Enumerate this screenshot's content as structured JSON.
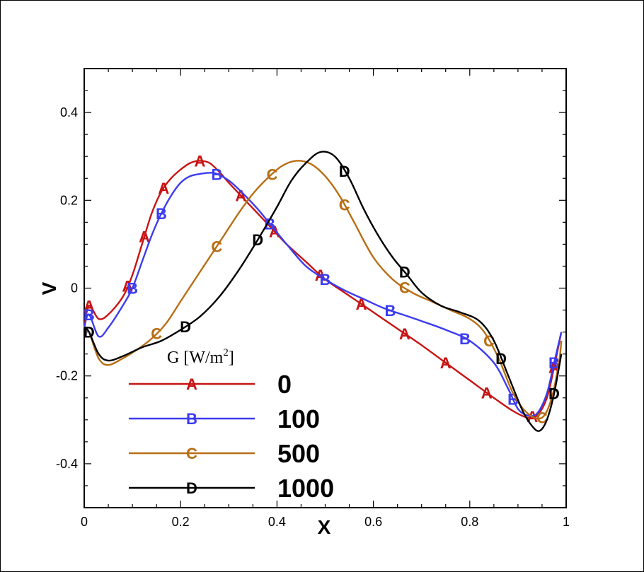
{
  "chart_data": {
    "type": "line",
    "xlabel": "X",
    "ylabel": "V",
    "xlim": [
      0,
      1
    ],
    "ylim": [
      -0.5,
      0.5
    ],
    "x_ticks": [
      "0",
      "0.2",
      "0.4",
      "0.6",
      "0.8",
      "1"
    ],
    "y_ticks": [
      "-0.4",
      "-0.2",
      "0",
      "0.2",
      "0.4"
    ],
    "legend_title": "G [W/m",
    "legend_title_sup": "2",
    "legend_title_end": "]",
    "legend_position": "bottom-left",
    "series": [
      {
        "name": "0",
        "marker": "A",
        "color": "#c81414",
        "points": [
          [
            0,
            -0.09
          ],
          [
            0.01,
            -0.04
          ],
          [
            0.03,
            -0.07
          ],
          [
            0.05,
            -0.06
          ],
          [
            0.08,
            -0.02
          ],
          [
            0.1,
            0.03
          ],
          [
            0.12,
            0.1
          ],
          [
            0.14,
            0.17
          ],
          [
            0.16,
            0.22
          ],
          [
            0.18,
            0.25
          ],
          [
            0.2,
            0.27
          ],
          [
            0.22,
            0.285
          ],
          [
            0.24,
            0.29
          ],
          [
            0.26,
            0.285
          ],
          [
            0.28,
            0.265
          ],
          [
            0.3,
            0.24
          ],
          [
            0.33,
            0.205
          ],
          [
            0.36,
            0.17
          ],
          [
            0.39,
            0.135
          ],
          [
            0.42,
            0.1
          ],
          [
            0.46,
            0.06
          ],
          [
            0.5,
            0.02
          ],
          [
            0.54,
            -0.01
          ],
          [
            0.58,
            -0.04
          ],
          [
            0.62,
            -0.07
          ],
          [
            0.66,
            -0.1
          ],
          [
            0.7,
            -0.13
          ],
          [
            0.75,
            -0.17
          ],
          [
            0.8,
            -0.21
          ],
          [
            0.85,
            -0.25
          ],
          [
            0.89,
            -0.28
          ],
          [
            0.92,
            -0.295
          ],
          [
            0.94,
            -0.29
          ],
          [
            0.96,
            -0.25
          ],
          [
            0.975,
            -0.18
          ],
          [
            0.99,
            -0.1
          ]
        ],
        "marker_x": [
          0.01,
          0.09,
          0.125,
          0.165,
          0.24,
          0.325,
          0.395,
          0.49,
          0.575,
          0.665,
          0.75,
          0.835,
          0.93,
          0.975
        ]
      },
      {
        "name": "100",
        "marker": "B",
        "color": "#3c3cf0",
        "points": [
          [
            0,
            -0.09
          ],
          [
            0.01,
            -0.06
          ],
          [
            0.03,
            -0.11
          ],
          [
            0.05,
            -0.09
          ],
          [
            0.08,
            -0.04
          ],
          [
            0.1,
            0.0
          ],
          [
            0.12,
            0.06
          ],
          [
            0.14,
            0.12
          ],
          [
            0.16,
            0.17
          ],
          [
            0.18,
            0.21
          ],
          [
            0.2,
            0.24
          ],
          [
            0.22,
            0.255
          ],
          [
            0.24,
            0.26
          ],
          [
            0.27,
            0.262
          ],
          [
            0.3,
            0.245
          ],
          [
            0.33,
            0.215
          ],
          [
            0.36,
            0.18
          ],
          [
            0.39,
            0.14
          ],
          [
            0.42,
            0.1
          ],
          [
            0.46,
            0.05
          ],
          [
            0.5,
            0.02
          ],
          [
            0.54,
            -0.005
          ],
          [
            0.58,
            -0.025
          ],
          [
            0.62,
            -0.045
          ],
          [
            0.66,
            -0.06
          ],
          [
            0.7,
            -0.075
          ],
          [
            0.75,
            -0.095
          ],
          [
            0.8,
            -0.12
          ],
          [
            0.85,
            -0.17
          ],
          [
            0.88,
            -0.23
          ],
          [
            0.9,
            -0.275
          ],
          [
            0.92,
            -0.29
          ],
          [
            0.94,
            -0.285
          ],
          [
            0.96,
            -0.24
          ],
          [
            0.975,
            -0.17
          ],
          [
            0.99,
            -0.1
          ]
        ],
        "marker_x": [
          0.01,
          0.1,
          0.16,
          0.275,
          0.385,
          0.5,
          0.635,
          0.79,
          0.89,
          0.975
        ]
      },
      {
        "name": "500",
        "marker": "C",
        "color": "#b86e14",
        "points": [
          [
            0,
            -0.09
          ],
          [
            0.01,
            -0.1
          ],
          [
            0.03,
            -0.16
          ],
          [
            0.05,
            -0.175
          ],
          [
            0.08,
            -0.16
          ],
          [
            0.11,
            -0.14
          ],
          [
            0.14,
            -0.115
          ],
          [
            0.17,
            -0.08
          ],
          [
            0.2,
            -0.03
          ],
          [
            0.23,
            0.02
          ],
          [
            0.26,
            0.07
          ],
          [
            0.29,
            0.12
          ],
          [
            0.32,
            0.17
          ],
          [
            0.35,
            0.215
          ],
          [
            0.38,
            0.25
          ],
          [
            0.41,
            0.278
          ],
          [
            0.44,
            0.29
          ],
          [
            0.47,
            0.283
          ],
          [
            0.5,
            0.255
          ],
          [
            0.53,
            0.21
          ],
          [
            0.56,
            0.15
          ],
          [
            0.6,
            0.07
          ],
          [
            0.64,
            0.02
          ],
          [
            0.68,
            -0.01
          ],
          [
            0.72,
            -0.03
          ],
          [
            0.76,
            -0.05
          ],
          [
            0.8,
            -0.07
          ],
          [
            0.83,
            -0.1
          ],
          [
            0.86,
            -0.16
          ],
          [
            0.89,
            -0.24
          ],
          [
            0.92,
            -0.285
          ],
          [
            0.95,
            -0.295
          ],
          [
            0.97,
            -0.25
          ],
          [
            0.985,
            -0.17
          ],
          [
            0.99,
            -0.12
          ]
        ],
        "marker_x": [
          0.15,
          0.275,
          0.39,
          0.54,
          0.665,
          0.84,
          0.95
        ]
      },
      {
        "name": "1000",
        "marker": "D",
        "color": "#000000",
        "points": [
          [
            0,
            -0.09
          ],
          [
            0.01,
            -0.1
          ],
          [
            0.03,
            -0.15
          ],
          [
            0.05,
            -0.165
          ],
          [
            0.08,
            -0.155
          ],
          [
            0.12,
            -0.135
          ],
          [
            0.16,
            -0.12
          ],
          [
            0.2,
            -0.095
          ],
          [
            0.24,
            -0.065
          ],
          [
            0.28,
            -0.02
          ],
          [
            0.32,
            0.04
          ],
          [
            0.36,
            0.11
          ],
          [
            0.4,
            0.185
          ],
          [
            0.43,
            0.245
          ],
          [
            0.46,
            0.285
          ],
          [
            0.49,
            0.31
          ],
          [
            0.52,
            0.3
          ],
          [
            0.55,
            0.25
          ],
          [
            0.58,
            0.18
          ],
          [
            0.61,
            0.12
          ],
          [
            0.64,
            0.07
          ],
          [
            0.67,
            0.03
          ],
          [
            0.7,
            -0.01
          ],
          [
            0.74,
            -0.04
          ],
          [
            0.78,
            -0.055
          ],
          [
            0.82,
            -0.075
          ],
          [
            0.85,
            -0.12
          ],
          [
            0.88,
            -0.2
          ],
          [
            0.91,
            -0.28
          ],
          [
            0.93,
            -0.315
          ],
          [
            0.945,
            -0.325
          ],
          [
            0.96,
            -0.3
          ],
          [
            0.975,
            -0.24
          ],
          [
            0.99,
            -0.15
          ]
        ],
        "marker_x": [
          0.01,
          0.21,
          0.36,
          0.54,
          0.665,
          0.865,
          0.975
        ]
      }
    ]
  }
}
